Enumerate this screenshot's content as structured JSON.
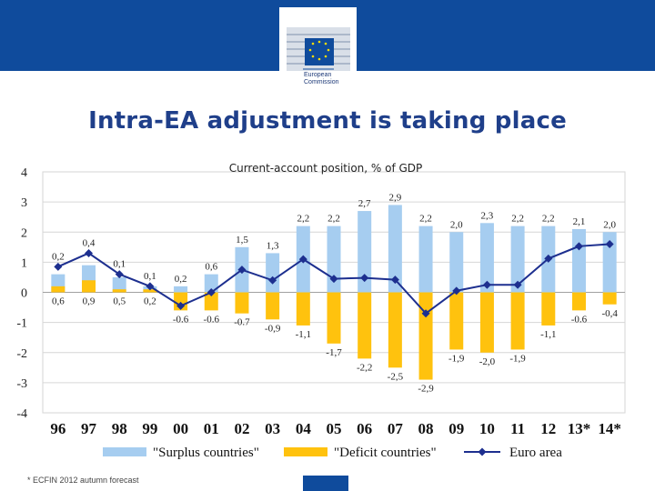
{
  "header": {
    "logo_text": [
      "European",
      "Commission"
    ],
    "title": "Intra-EA adjustment is taking place"
  },
  "chart_data": {
    "type": "bar",
    "title": "Current-account position, % of GDP",
    "categories": [
      "96",
      "97",
      "98",
      "99",
      "00",
      "01",
      "02",
      "03",
      "04",
      "05",
      "06",
      "07",
      "08",
      "09",
      "10",
      "11",
      "12",
      "13*",
      "14*"
    ],
    "series": [
      {
        "name": "\"Surplus countries\"",
        "kind": "bar",
        "color": "#a6cdf0",
        "values": [
          0.6,
          0.9,
          0.5,
          0.2,
          0.2,
          0.6,
          1.5,
          1.3,
          2.2,
          2.2,
          2.7,
          2.9,
          2.2,
          2.0,
          2.3,
          2.2,
          2.2,
          2.1,
          2.0
        ],
        "labels": [
          "0,6",
          "0,9",
          "0,5",
          "0,2",
          "0,2",
          "0,6",
          "1,5",
          "1,3",
          "2,2",
          "2,2",
          "2,7",
          "2,9",
          "2,2",
          "2,0",
          "2,3",
          "2,2",
          "2,2",
          "2,1",
          "2,0"
        ]
      },
      {
        "name": "\"Deficit countries\"",
        "kind": "bar",
        "color": "#ffc20e",
        "values": [
          0.2,
          0.4,
          0.1,
          0.1,
          -0.6,
          -0.6,
          -0.7,
          -0.9,
          -1.1,
          -1.7,
          -2.2,
          -2.5,
          -2.9,
          -1.9,
          -2.0,
          -1.9,
          -1.1,
          -0.6,
          -0.4
        ],
        "labels": [
          "0,2",
          "0,4",
          "0,1",
          "0,1",
          "-0.6",
          "-0.6",
          "-0.7",
          "-0,9",
          "-1,1",
          "-1,7",
          "-2,2",
          "-2,5",
          "-2,9",
          "-1,9",
          "-2,0",
          "-1,9",
          "-1,1",
          "-0.6",
          "-0,4"
        ]
      },
      {
        "name": "Euro area",
        "kind": "line",
        "color": "#1d2f8f",
        "values": [
          0.85,
          1.3,
          0.6,
          0.2,
          -0.45,
          0.0,
          0.75,
          0.4,
          1.1,
          0.45,
          0.48,
          0.42,
          -0.7,
          0.05,
          0.25,
          0.25,
          1.12,
          1.53,
          1.6
        ]
      }
    ],
    "ylim": [
      -4,
      4
    ],
    "yticks": [
      "4",
      "3",
      "2",
      "1",
      "0",
      "-1",
      "-2",
      "-3",
      "-4"
    ],
    "xlabel": "",
    "ylabel": "",
    "grid": true,
    "legend": "bottom"
  },
  "footer": {
    "note": "* ECFIN 2012 autumn forecast"
  }
}
